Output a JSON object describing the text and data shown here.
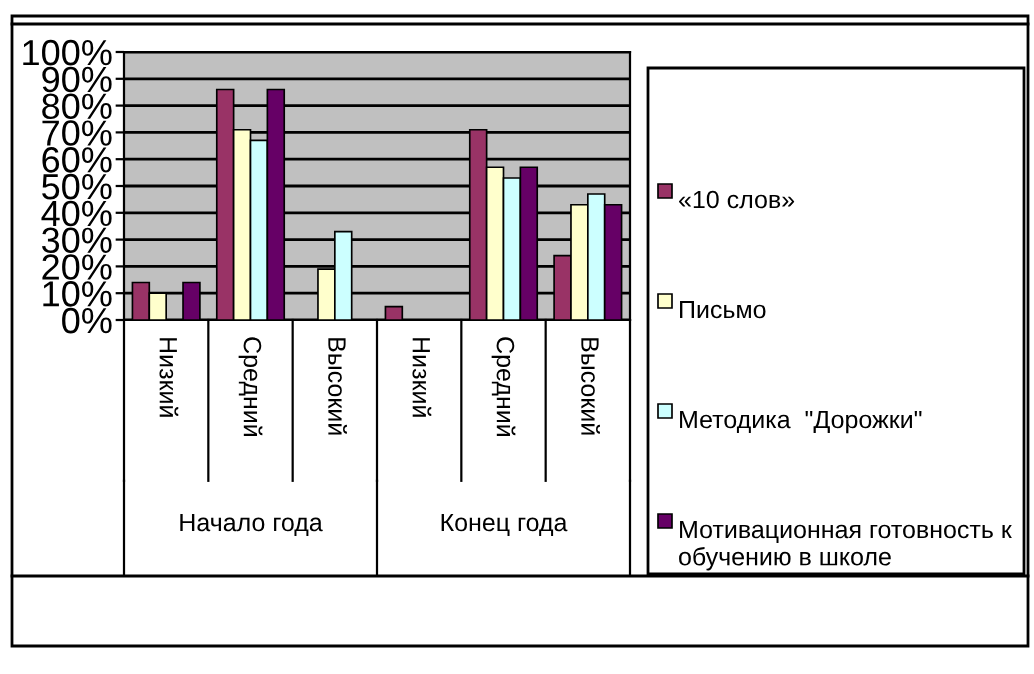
{
  "chart_data": {
    "type": "bar",
    "categories": [
      "Низкий",
      "Средний",
      "Высокий",
      "Низкий",
      "Средний",
      "Высокий"
    ],
    "series": [
      {
        "name": "«10 слов»",
        "color": "#993366",
        "values": [
          14,
          86,
          null,
          5,
          71,
          24
        ]
      },
      {
        "name": "Письмо",
        "color": "#ffffcc",
        "values": [
          10,
          71,
          19,
          null,
          57,
          43
        ]
      },
      {
        "name": "Методика  \"Дорожки\"",
        "color": "#ccffff",
        "values": [
          null,
          67,
          33,
          null,
          53,
          47
        ]
      },
      {
        "name": "Мотивационная готовность к обучению в школе",
        "color": "#660066",
        "values": [
          14,
          86,
          null,
          null,
          57,
          43
        ]
      }
    ],
    "annotations": [
      "Начало года",
      "Конец года"
    ],
    "ylim": [
      0,
      100
    ],
    "yticks": [
      {
        "value": 0,
        "label": "0%"
      },
      {
        "value": 10,
        "label": "10%"
      },
      {
        "value": 20,
        "label": "20%"
      },
      {
        "value": 30,
        "label": "30%"
      },
      {
        "value": 40,
        "label": "40%"
      },
      {
        "value": 50,
        "label": "50%"
      },
      {
        "value": 60,
        "label": "60%"
      },
      {
        "value": 70,
        "label": "70%"
      },
      {
        "value": 80,
        "label": "80%"
      },
      {
        "value": 90,
        "label": "90%"
      },
      {
        "value": 100,
        "label": "100%"
      }
    ],
    "grid": "y",
    "legend": "right"
  }
}
